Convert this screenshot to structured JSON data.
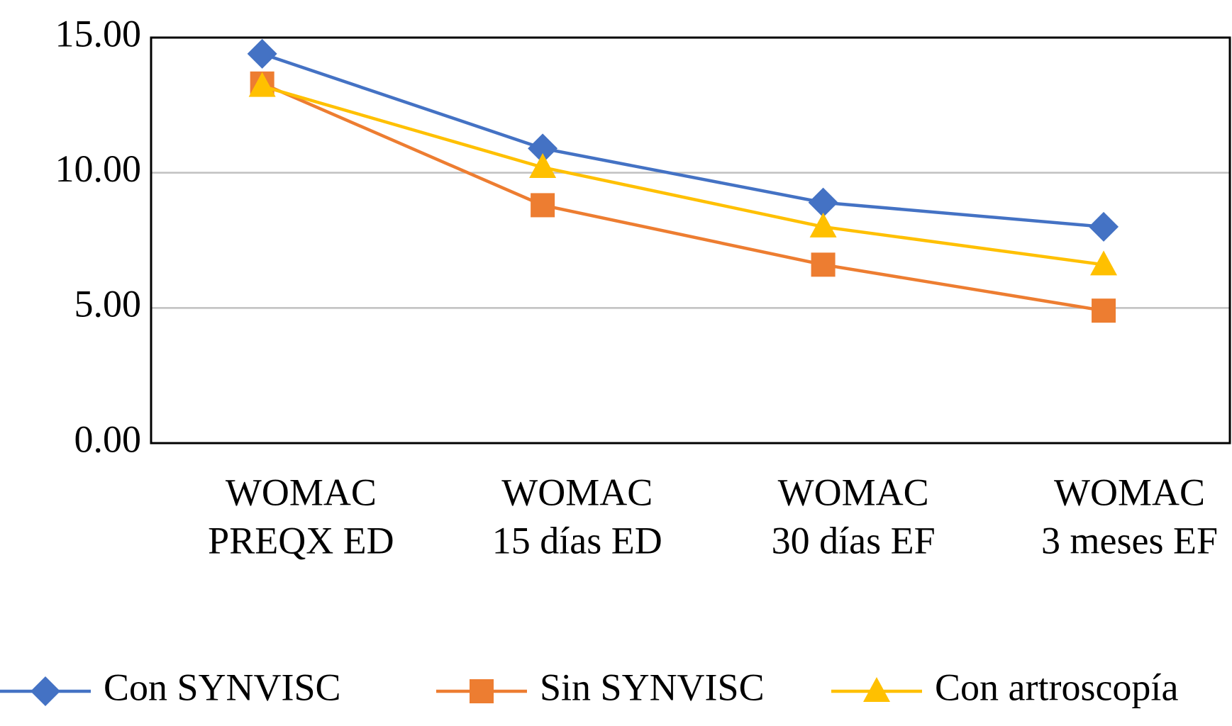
{
  "chart_data": {
    "type": "line",
    "categories": [
      [
        "WOMAC",
        "PREQX ED"
      ],
      [
        "WOMAC",
        "15 días ED"
      ],
      [
        "WOMAC",
        "30 días EF"
      ],
      [
        "WOMAC",
        "3 meses EF"
      ]
    ],
    "series": [
      {
        "name": "Con SYNVISC",
        "color": "#4472c4",
        "marker": "diamond",
        "values": [
          14.4,
          10.9,
          8.9,
          8.0
        ]
      },
      {
        "name": "Sin SYNVISC",
        "color": "#ed7d31",
        "marker": "square",
        "values": [
          13.3,
          8.8,
          6.6,
          4.9
        ]
      },
      {
        "name": "Con artroscopía",
        "color": "#ffc000",
        "marker": "triangle",
        "values": [
          13.2,
          10.2,
          8.0,
          6.6
        ]
      }
    ],
    "ylim": [
      0,
      15
    ],
    "yticks": [
      {
        "value": 0,
        "label": "0.00"
      },
      {
        "value": 5,
        "label": "5.00"
      },
      {
        "value": 10,
        "label": "10.00"
      },
      {
        "value": 15,
        "label": "15.00"
      }
    ],
    "grid": true,
    "legend": "bottom"
  }
}
